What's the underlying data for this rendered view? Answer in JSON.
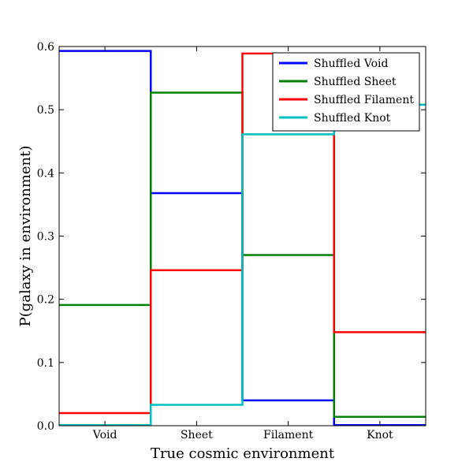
{
  "chart_data": {
    "type": "step",
    "title": "",
    "xlabel": "True cosmic environment",
    "ylabel": "P(galaxy in environment)",
    "categories": [
      "Void",
      "Sheet",
      "Filament",
      "Knot"
    ],
    "ylim": [
      0,
      0.6
    ],
    "yticks": [
      "0.0",
      "0.1",
      "0.2",
      "0.3",
      "0.4",
      "0.5",
      "0.6"
    ],
    "legend_position": "top-right",
    "series": [
      {
        "name": "Shuffled Void",
        "color": "#0000ff",
        "values": [
          0.593,
          0.368,
          0.04,
          0.001
        ]
      },
      {
        "name": "Shuffled Sheet",
        "color": "#008000",
        "values": [
          0.191,
          0.527,
          0.27,
          0.014
        ]
      },
      {
        "name": "Shuffled Filament",
        "color": "#ff0000",
        "values": [
          0.02,
          0.246,
          0.589,
          0.148
        ]
      },
      {
        "name": "Shuffled Knot",
        "color": "#00bfbf",
        "values": [
          0.001,
          0.033,
          0.461,
          0.508
        ]
      }
    ]
  }
}
